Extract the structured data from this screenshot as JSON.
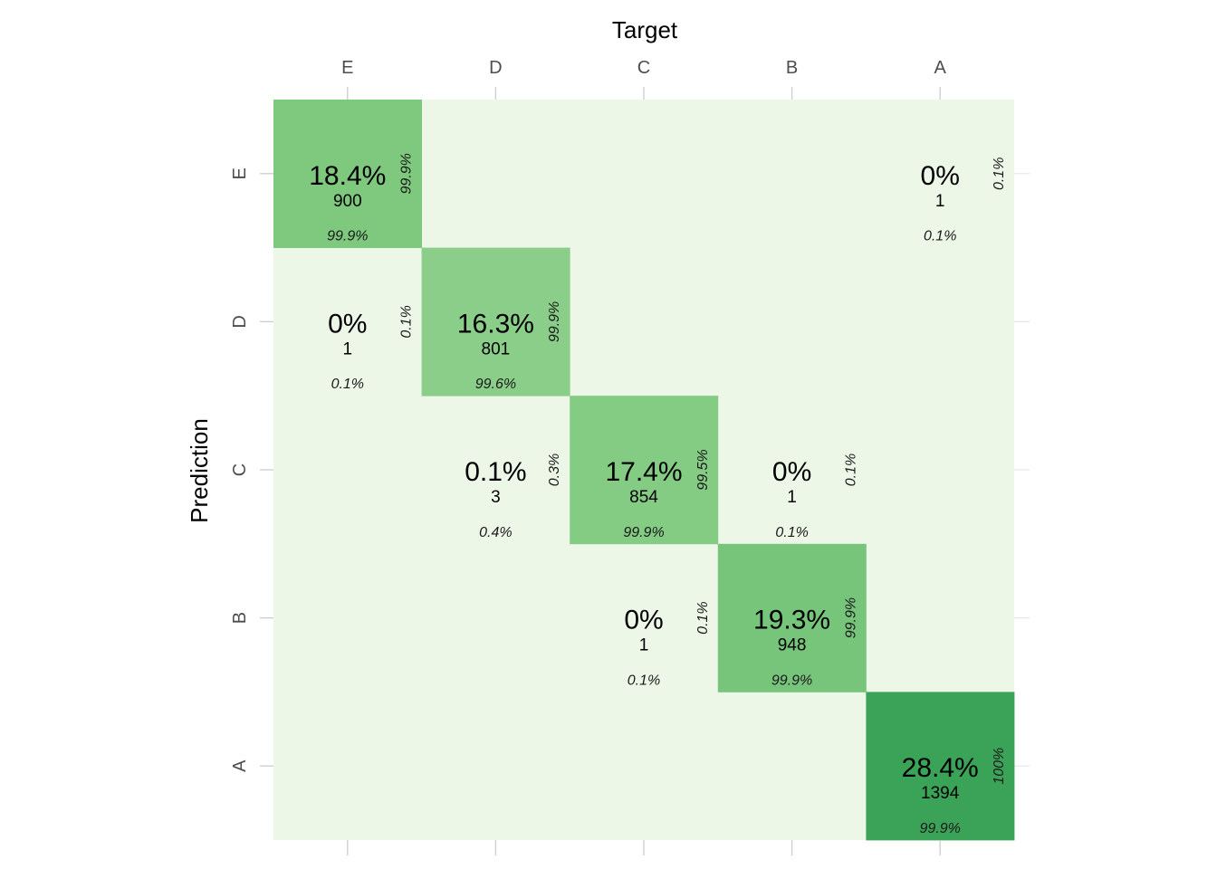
{
  "chart_data": {
    "type": "heatmap",
    "title": "",
    "xlabel": "Target",
    "ylabel": "Prediction",
    "x_categories": [
      "E",
      "D",
      "C",
      "B",
      "A"
    ],
    "y_categories": [
      "E",
      "D",
      "C",
      "B",
      "A"
    ],
    "grid": true,
    "colors": {
      "background_tile": "#edf7e8",
      "gridline": "#e6e6e6",
      "tick": "#cccccc",
      "scale_low": "#c7e9c0",
      "scale_high": "#3aa357"
    },
    "cells": [
      {
        "target": "E",
        "prediction": "E",
        "percent_label": "18.4%",
        "count": 900,
        "col_pct": "99.9%",
        "row_pct": "99.9%",
        "color": "#7ec97e"
      },
      {
        "target": "A",
        "prediction": "E",
        "percent_label": "0%",
        "count": 1,
        "col_pct": "0.1%",
        "row_pct": "0.1%",
        "color": ""
      },
      {
        "target": "E",
        "prediction": "D",
        "percent_label": "0%",
        "count": 1,
        "col_pct": "0.1%",
        "row_pct": "0.1%",
        "color": ""
      },
      {
        "target": "D",
        "prediction": "D",
        "percent_label": "16.3%",
        "count": 801,
        "col_pct": "99.6%",
        "row_pct": "99.9%",
        "color": "#8bce89"
      },
      {
        "target": "D",
        "prediction": "C",
        "percent_label": "0.1%",
        "count": 3,
        "col_pct": "0.4%",
        "row_pct": "0.3%",
        "color": ""
      },
      {
        "target": "C",
        "prediction": "C",
        "percent_label": "17.4%",
        "count": 854,
        "col_pct": "99.9%",
        "row_pct": "99.5%",
        "color": "#84cb83"
      },
      {
        "target": "B",
        "prediction": "C",
        "percent_label": "0%",
        "count": 1,
        "col_pct": "0.1%",
        "row_pct": "0.1%",
        "color": ""
      },
      {
        "target": "C",
        "prediction": "B",
        "percent_label": "0%",
        "count": 1,
        "col_pct": "0.1%",
        "row_pct": "0.1%",
        "color": ""
      },
      {
        "target": "B",
        "prediction": "B",
        "percent_label": "19.3%",
        "count": 948,
        "col_pct": "99.9%",
        "row_pct": "99.9%",
        "color": "#77c47b"
      },
      {
        "target": "A",
        "prediction": "A",
        "percent_label": "28.4%",
        "count": 1394,
        "col_pct": "99.9%",
        "row_pct": "100%",
        "color": "#3aa357"
      }
    ]
  }
}
